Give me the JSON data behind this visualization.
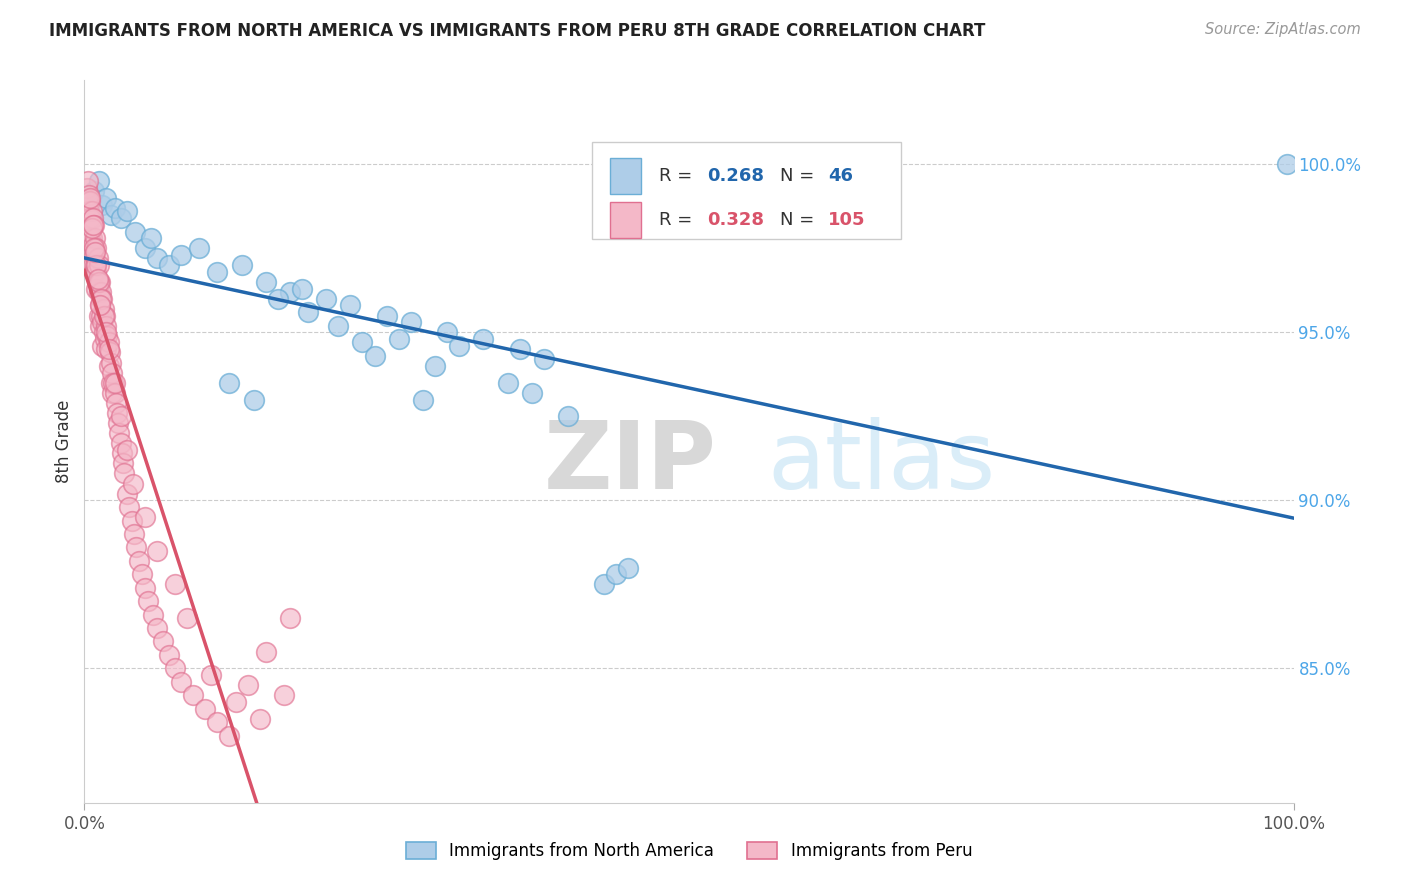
{
  "title": "IMMIGRANTS FROM NORTH AMERICA VS IMMIGRANTS FROM PERU 8TH GRADE CORRELATION CHART",
  "source": "Source: ZipAtlas.com",
  "ylabel": "8th Grade",
  "right_yticks": [
    85.0,
    90.0,
    95.0,
    100.0
  ],
  "xlim": [
    0.0,
    100.0
  ],
  "ylim": [
    81.0,
    102.5
  ],
  "legend_label_blue": "Immigrants from North America",
  "legend_label_pink": "Immigrants from Peru",
  "r_blue": 0.268,
  "n_blue": 46,
  "r_pink": 0.328,
  "n_pink": 105,
  "blue_color": "#aecde8",
  "pink_color": "#f4b8c8",
  "blue_line_color": "#2166ac",
  "pink_line_color": "#d9536a",
  "blue_edge_color": "#6baed6",
  "pink_edge_color": "#e07090",
  "blue_scatter_x": [
    0.8,
    1.2,
    1.5,
    1.8,
    2.2,
    2.5,
    3.0,
    3.5,
    4.2,
    5.0,
    5.5,
    6.0,
    7.0,
    8.0,
    9.5,
    11.0,
    13.0,
    15.0,
    17.0,
    20.0,
    22.0,
    25.0,
    27.0,
    30.0,
    16.0,
    18.0,
    33.0,
    36.0,
    38.0,
    40.0,
    26.0,
    28.0,
    12.0,
    14.0,
    43.0,
    44.0,
    45.0,
    18.5,
    21.0,
    23.0,
    24.0,
    35.0,
    37.0,
    29.0,
    31.0,
    99.5
  ],
  "blue_scatter_y": [
    99.2,
    99.5,
    98.8,
    99.0,
    98.5,
    98.7,
    98.4,
    98.6,
    98.0,
    97.5,
    97.8,
    97.2,
    97.0,
    97.3,
    97.5,
    96.8,
    97.0,
    96.5,
    96.2,
    96.0,
    95.8,
    95.5,
    95.3,
    95.0,
    96.0,
    96.3,
    94.8,
    94.5,
    94.2,
    92.5,
    94.8,
    93.0,
    93.5,
    93.0,
    87.5,
    87.8,
    88.0,
    95.6,
    95.2,
    94.7,
    94.3,
    93.5,
    93.2,
    94.0,
    94.6,
    100.0
  ],
  "pink_scatter_x": [
    0.2,
    0.3,
    0.3,
    0.4,
    0.4,
    0.5,
    0.5,
    0.5,
    0.6,
    0.6,
    0.7,
    0.7,
    0.7,
    0.8,
    0.8,
    0.8,
    0.9,
    0.9,
    1.0,
    1.0,
    1.0,
    1.1,
    1.1,
    1.2,
    1.2,
    1.2,
    1.3,
    1.3,
    1.3,
    1.4,
    1.4,
    1.5,
    1.5,
    1.5,
    1.6,
    1.6,
    1.7,
    1.7,
    1.8,
    1.8,
    1.9,
    2.0,
    2.0,
    2.1,
    2.2,
    2.2,
    2.3,
    2.3,
    2.4,
    2.5,
    2.6,
    2.7,
    2.8,
    2.9,
    3.0,
    3.1,
    3.2,
    3.3,
    3.5,
    3.7,
    3.9,
    4.1,
    4.3,
    4.5,
    4.8,
    5.0,
    5.3,
    5.7,
    6.0,
    6.5,
    7.0,
    7.5,
    8.0,
    9.0,
    10.0,
    11.0,
    12.0,
    13.5,
    15.0,
    17.0,
    0.6,
    0.8,
    1.0,
    1.2,
    1.4,
    1.6,
    1.8,
    2.0,
    2.5,
    3.0,
    3.5,
    4.0,
    5.0,
    6.0,
    7.5,
    8.5,
    10.5,
    12.5,
    14.5,
    16.5,
    0.5,
    0.7,
    0.9,
    1.1,
    1.3
  ],
  "pink_scatter_y": [
    99.3,
    99.5,
    98.9,
    99.1,
    98.6,
    98.9,
    98.4,
    97.8,
    98.6,
    97.8,
    98.4,
    97.6,
    97.0,
    98.2,
    97.3,
    96.8,
    97.8,
    97.0,
    97.5,
    96.8,
    96.3,
    97.2,
    96.5,
    97.0,
    96.2,
    95.5,
    96.5,
    95.8,
    95.2,
    96.2,
    95.5,
    96.0,
    95.3,
    94.6,
    95.7,
    95.0,
    95.5,
    94.8,
    95.2,
    94.5,
    94.9,
    94.7,
    94.0,
    94.4,
    94.1,
    93.5,
    93.8,
    93.2,
    93.5,
    93.2,
    92.9,
    92.6,
    92.3,
    92.0,
    91.7,
    91.4,
    91.1,
    90.8,
    90.2,
    89.8,
    89.4,
    89.0,
    88.6,
    88.2,
    87.8,
    87.4,
    87.0,
    86.6,
    86.2,
    85.8,
    85.4,
    85.0,
    84.6,
    84.2,
    83.8,
    83.4,
    83.0,
    84.5,
    85.5,
    86.5,
    98.1,
    97.5,
    97.0,
    96.5,
    96.0,
    95.5,
    95.0,
    94.5,
    93.5,
    92.5,
    91.5,
    90.5,
    89.5,
    88.5,
    87.5,
    86.5,
    84.8,
    84.0,
    83.5,
    84.2,
    99.0,
    98.2,
    97.4,
    96.6,
    95.8
  ],
  "watermark_zip": "ZIP",
  "watermark_atlas": "atlas",
  "watermark_color": "#daedf8"
}
